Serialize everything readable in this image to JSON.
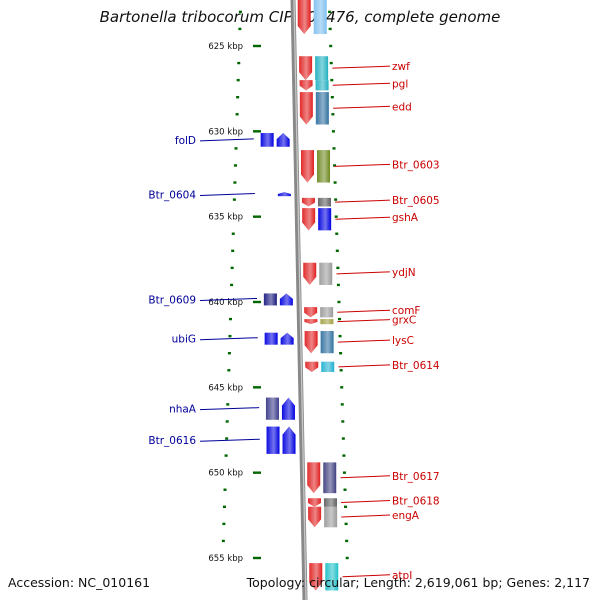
{
  "title": "Bartonella tribocorum CIP 105476, complete genome",
  "footer": {
    "accession": "Accession: NC_010161",
    "topology": "Topology: circular; Length: 2,619,061 bp; Genes: 2,117"
  },
  "colors": {
    "forward_strand_label": "#cc0000",
    "reverse_strand_label": "#000099",
    "scale_ticks": "#006600",
    "backbone": "#888888"
  },
  "chart_data": {
    "type": "genome_map",
    "unit": "kbp",
    "range_kbp": [
      621,
      657
    ],
    "ruler_ticks_kbp": [
      625,
      630,
      635,
      640,
      645,
      650,
      655
    ],
    "ruler_labels": [
      "625 kbp",
      "630 kbp",
      "635 kbp",
      "640 kbp",
      "645 kbp",
      "650 kbp",
      "655 kbp"
    ],
    "genes": [
      {
        "name": "",
        "strand": "+",
        "start_kbp": 621.5,
        "end_kbp": 624.3,
        "colors": [
          "#e02020",
          "#7fbfef"
        ]
      },
      {
        "name": "zwf",
        "strand": "+",
        "start_kbp": 625.6,
        "end_kbp": 627.0,
        "colors": [
          "#e02020",
          "#20b0c0"
        ]
      },
      {
        "name": "pgl",
        "strand": "+",
        "start_kbp": 627.0,
        "end_kbp": 627.6,
        "colors": [
          "#e02020",
          "#20b0c0"
        ]
      },
      {
        "name": "edd",
        "strand": "+",
        "start_kbp": 627.7,
        "end_kbp": 629.6,
        "colors": [
          "#e02020",
          "#3070a0"
        ]
      },
      {
        "name": "Btr_0603",
        "strand": "+",
        "start_kbp": 631.1,
        "end_kbp": 633.0,
        "colors": [
          "#e02020",
          "#6e8a20"
        ]
      },
      {
        "name": "Btr_0605",
        "strand": "+",
        "start_kbp": 633.9,
        "end_kbp": 634.4,
        "colors": [
          "#e02020",
          "#606060"
        ]
      },
      {
        "name": "gshA",
        "strand": "+",
        "start_kbp": 634.5,
        "end_kbp": 635.8,
        "colors": [
          "#e02020",
          "#0000e0"
        ]
      },
      {
        "name": "ydjN",
        "strand": "+",
        "start_kbp": 637.7,
        "end_kbp": 639.0,
        "colors": [
          "#e02020",
          "#9a9a9a"
        ]
      },
      {
        "name": "comF",
        "strand": "+",
        "start_kbp": 640.3,
        "end_kbp": 640.9,
        "colors": [
          "#e02020",
          "#9a9a9a"
        ]
      },
      {
        "name": "grxC",
        "strand": "+",
        "start_kbp": 641.0,
        "end_kbp": 641.3,
        "colors": [
          "#e02020",
          "#a0a040"
        ]
      },
      {
        "name": "lysC",
        "strand": "+",
        "start_kbp": 641.7,
        "end_kbp": 643.0,
        "colors": [
          "#e02020",
          "#3070a0"
        ]
      },
      {
        "name": "Btr_0614",
        "strand": "+",
        "start_kbp": 643.5,
        "end_kbp": 644.1,
        "colors": [
          "#e02020",
          "#20b0d0"
        ]
      },
      {
        "name": "Btr_0617",
        "strand": "+",
        "start_kbp": 649.4,
        "end_kbp": 651.2,
        "colors": [
          "#e02020",
          "#404080"
        ]
      },
      {
        "name": "Btr_0618",
        "strand": "+",
        "start_kbp": 651.5,
        "end_kbp": 652.0,
        "colors": [
          "#e02020",
          "#606060"
        ]
      },
      {
        "name": "engA",
        "strand": "+",
        "start_kbp": 652.0,
        "end_kbp": 653.2,
        "colors": [
          "#e02020",
          "#9a9a9a"
        ]
      },
      {
        "name": "atpI",
        "strand": "+",
        "start_kbp": 655.3,
        "end_kbp": 656.9,
        "colors": [
          "#e02020",
          "#20c0c8"
        ]
      },
      {
        "name": "",
        "strand": "-",
        "start_kbp": 621.6,
        "end_kbp": 622.0,
        "colors": [
          "#0000e0",
          "#0000e0"
        ]
      },
      {
        "name": "folD",
        "strand": "-",
        "start_kbp": 630.1,
        "end_kbp": 630.9,
        "colors": [
          "#0000e0",
          "#0000e0"
        ]
      },
      {
        "name": "Btr_0604",
        "strand": "-",
        "start_kbp": 633.6,
        "end_kbp": 633.8,
        "colors": [
          "#0000e0",
          "#0000e0"
        ]
      },
      {
        "name": "Btr_0609",
        "strand": "-",
        "start_kbp": 639.5,
        "end_kbp": 640.2,
        "colors": [
          "#1a1a80",
          "#0000e0"
        ]
      },
      {
        "name": "ubiG",
        "strand": "-",
        "start_kbp": 641.8,
        "end_kbp": 642.5,
        "colors": [
          "#0000e0",
          "#0000e0"
        ]
      },
      {
        "name": "nhaA",
        "strand": "-",
        "start_kbp": 645.6,
        "end_kbp": 646.9,
        "colors": [
          "#3a3a8a",
          "#0000e0"
        ]
      },
      {
        "name": "Btr_0616",
        "strand": "-",
        "start_kbp": 647.3,
        "end_kbp": 648.9,
        "colors": [
          "#0000e0",
          "#0000e0"
        ]
      }
    ]
  }
}
